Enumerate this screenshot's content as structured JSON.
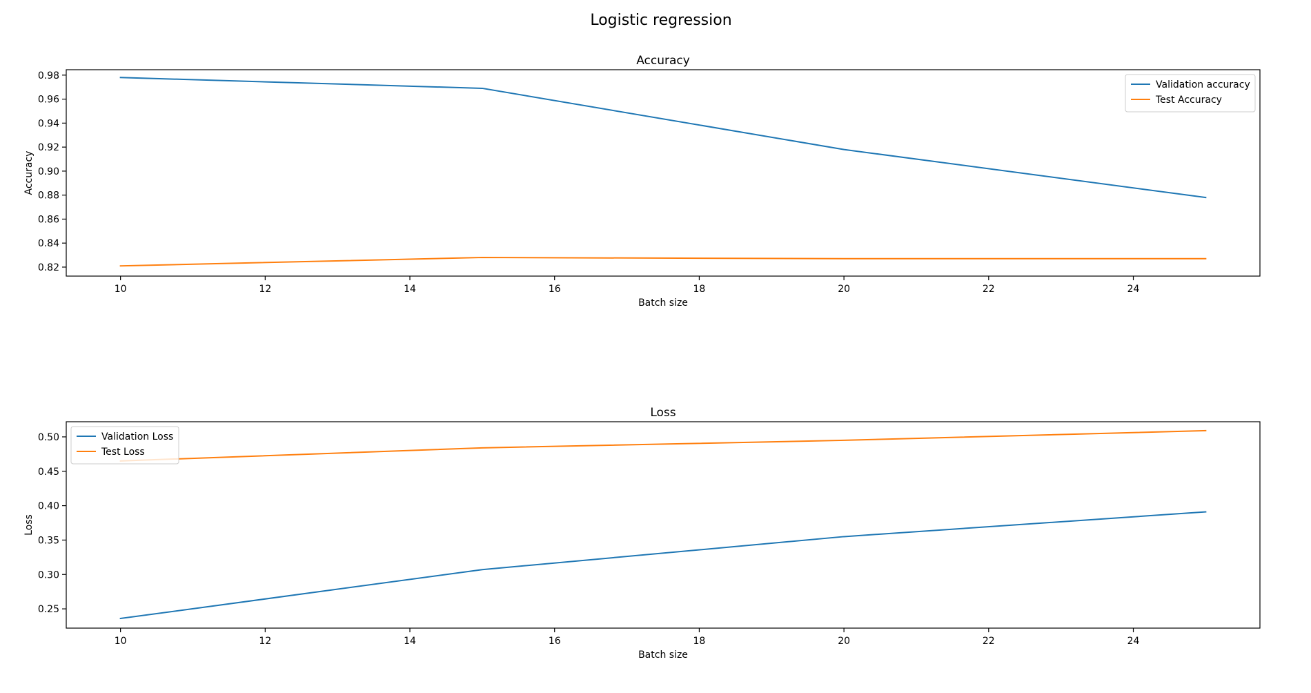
{
  "figure": {
    "suptitle": "Logistic regression"
  },
  "chart_data": [
    {
      "type": "line",
      "title": "Accuracy",
      "xlabel": "Batch size",
      "ylabel": "Accuracy",
      "x": [
        10,
        15,
        20,
        25
      ],
      "xlim": [
        9.25,
        25.75
      ],
      "ylim": [
        0.8125,
        0.9845
      ],
      "xticks": [
        10,
        12,
        14,
        16,
        18,
        20,
        22,
        24
      ],
      "yticks": [
        0.82,
        0.84,
        0.86,
        0.88,
        0.9,
        0.92,
        0.94,
        0.96,
        0.98
      ],
      "ytick_decimals": 2,
      "grid": false,
      "legend_position": "top-right",
      "series": [
        {
          "name": "Validation accuracy",
          "color": "#1f77b4",
          "values": [
            0.978,
            0.969,
            0.918,
            0.878
          ]
        },
        {
          "name": "Test Accuracy",
          "color": "#ff7f0e",
          "values": [
            0.821,
            0.828,
            0.827,
            0.827
          ]
        }
      ]
    },
    {
      "type": "line",
      "title": "Loss",
      "xlabel": "Batch size",
      "ylabel": "Loss",
      "x": [
        10,
        15,
        20,
        25
      ],
      "xlim": [
        9.25,
        25.75
      ],
      "ylim": [
        0.222,
        0.522
      ],
      "xticks": [
        10,
        12,
        14,
        16,
        18,
        20,
        22,
        24
      ],
      "yticks": [
        0.25,
        0.3,
        0.35,
        0.4,
        0.45,
        0.5
      ],
      "ytick_decimals": 2,
      "grid": false,
      "legend_position": "top-left",
      "series": [
        {
          "name": "Validation Loss",
          "color": "#1f77b4",
          "values": [
            0.236,
            0.307,
            0.355,
            0.391
          ]
        },
        {
          "name": "Test Loss",
          "color": "#ff7f0e",
          "values": [
            0.465,
            0.484,
            0.495,
            0.509
          ]
        }
      ]
    }
  ]
}
